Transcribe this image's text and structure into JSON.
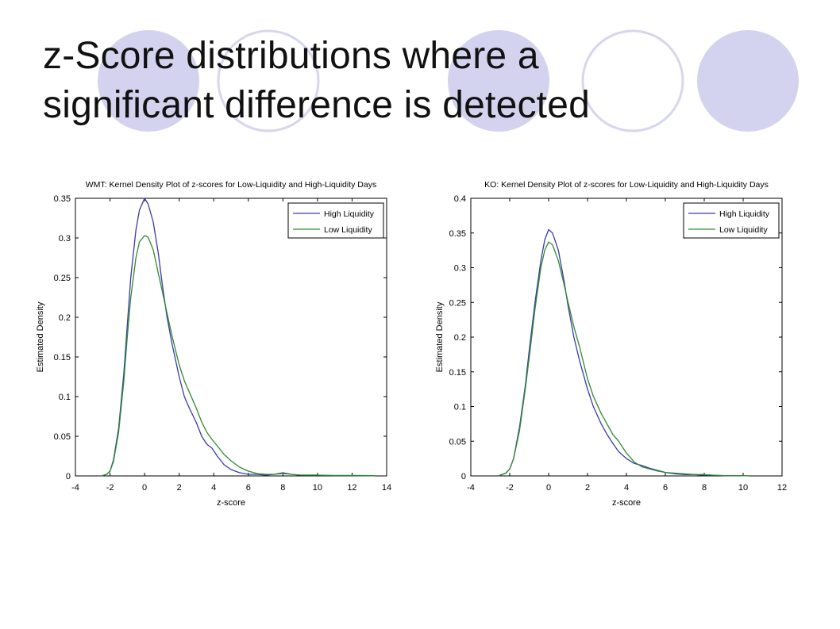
{
  "slide": {
    "title_line1": "z-Score distributions where a",
    "title_line2": "significant difference is detected"
  },
  "colors": {
    "circle_fill": "#d3d3ef",
    "circle_outline": "#d6d6ee",
    "high_liquidity": "#3a3aa8",
    "low_liquidity": "#2e8b2e"
  },
  "decor_circles": [
    {
      "kind": "filled"
    },
    {
      "kind": "outline"
    },
    {
      "kind": "filled"
    },
    {
      "kind": "outline"
    },
    {
      "kind": "filled"
    }
  ],
  "chart_data": [
    {
      "type": "line",
      "title": "WMT: Kernel Density Plot of z-scores for Low-Liquidity and High-Liquidity Days",
      "xlabel": "z-score",
      "ylabel": "Estimated Density",
      "xlim": [
        -4,
        14
      ],
      "ylim": [
        0,
        0.35
      ],
      "xticks": [
        -4,
        -2,
        0,
        2,
        4,
        6,
        8,
        10,
        12,
        14
      ],
      "yticks": [
        0,
        0.05,
        0.1,
        0.15,
        0.2,
        0.25,
        0.3,
        0.35
      ],
      "ytick_labels": [
        "0",
        "0.05",
        "0.1",
        "0.15",
        "0.2",
        "0.25",
        "0.3",
        "0.35"
      ],
      "grid": false,
      "legend": "top-right",
      "series": [
        {
          "name": "High Liquidity",
          "x": [
            -2.5,
            -2.2,
            -2.0,
            -1.8,
            -1.5,
            -1.2,
            -1.0,
            -0.8,
            -0.5,
            -0.3,
            0.0,
            0.2,
            0.5,
            0.8,
            1.0,
            1.3,
            1.6,
            2.0,
            2.3,
            2.6,
            3.0,
            3.3,
            3.6,
            3.9,
            4.2,
            4.6,
            5.0,
            5.5,
            6.0,
            6.5,
            7.0,
            7.5,
            8.0,
            8.5,
            9.0,
            10.0,
            11.0,
            12.0,
            13.3
          ],
          "y": [
            0.0,
            0.002,
            0.006,
            0.02,
            0.06,
            0.13,
            0.19,
            0.25,
            0.31,
            0.335,
            0.35,
            0.343,
            0.32,
            0.28,
            0.245,
            0.2,
            0.165,
            0.125,
            0.1,
            0.085,
            0.067,
            0.05,
            0.04,
            0.035,
            0.025,
            0.014,
            0.008,
            0.004,
            0.002,
            0.002,
            0.001,
            0.002,
            0.004,
            0.002,
            0.001,
            0.001,
            0.0005,
            0.0005,
            0.0003
          ]
        },
        {
          "name": "Low Liquidity",
          "x": [
            -2.5,
            -2.2,
            -2.0,
            -1.8,
            -1.5,
            -1.2,
            -1.0,
            -0.8,
            -0.5,
            -0.3,
            0.0,
            0.2,
            0.5,
            0.8,
            1.0,
            1.3,
            1.6,
            2.0,
            2.3,
            2.6,
            3.0,
            3.3,
            3.6,
            3.9,
            4.2,
            4.6,
            5.0,
            5.5,
            6.0,
            6.5,
            7.0,
            7.5,
            8.0,
            8.5,
            9.0,
            10.0,
            11.0,
            12.0,
            13.3
          ],
          "y": [
            0.0,
            0.002,
            0.006,
            0.018,
            0.055,
            0.12,
            0.175,
            0.225,
            0.275,
            0.295,
            0.303,
            0.301,
            0.285,
            0.255,
            0.235,
            0.205,
            0.175,
            0.14,
            0.12,
            0.105,
            0.085,
            0.068,
            0.055,
            0.046,
            0.038,
            0.027,
            0.019,
            0.011,
            0.006,
            0.003,
            0.002,
            0.002,
            0.003,
            0.002,
            0.001,
            0.001,
            0.0005,
            0.0005,
            0.0003
          ]
        }
      ]
    },
    {
      "type": "line",
      "title": "KO: Kernel Density Plot of z-scores for Low-Liquidity and High-Liquidity Days",
      "xlabel": "z-score",
      "ylabel": "Estimated Density",
      "xlim": [
        -4,
        12
      ],
      "ylim": [
        0,
        0.4
      ],
      "xticks": [
        -4,
        -2,
        0,
        2,
        4,
        6,
        8,
        10,
        12
      ],
      "yticks": [
        0,
        0.05,
        0.1,
        0.15,
        0.2,
        0.25,
        0.3,
        0.35,
        0.4
      ],
      "ytick_labels": [
        "0",
        "0.05",
        "0.1",
        "0.15",
        "0.2",
        "0.25",
        "0.3",
        "0.35",
        "0.4"
      ],
      "grid": false,
      "legend": "top-right",
      "series": [
        {
          "name": "High Liquidity",
          "x": [
            -2.6,
            -2.2,
            -2.0,
            -1.8,
            -1.5,
            -1.2,
            -1.0,
            -0.7,
            -0.4,
            -0.2,
            0.0,
            0.2,
            0.5,
            0.8,
            1.0,
            1.3,
            1.6,
            2.0,
            2.3,
            2.7,
            3.0,
            3.3,
            3.6,
            4.0,
            4.4,
            4.8,
            5.2,
            5.6,
            6.0,
            6.5,
            7.0,
            7.5,
            8.0,
            8.5,
            9.0,
            9.5,
            10.3
          ],
          "y": [
            0.0,
            0.004,
            0.01,
            0.025,
            0.07,
            0.13,
            0.18,
            0.25,
            0.31,
            0.34,
            0.355,
            0.35,
            0.325,
            0.28,
            0.245,
            0.2,
            0.165,
            0.125,
            0.1,
            0.075,
            0.06,
            0.047,
            0.035,
            0.025,
            0.018,
            0.015,
            0.011,
            0.008,
            0.005,
            0.003,
            0.002,
            0.002,
            0.001,
            0.001,
            0.0005,
            0.0003,
            0.0001
          ]
        },
        {
          "name": "Low Liquidity",
          "x": [
            -2.6,
            -2.2,
            -2.0,
            -1.8,
            -1.5,
            -1.2,
            -1.0,
            -0.7,
            -0.4,
            -0.2,
            0.0,
            0.2,
            0.5,
            0.8,
            1.0,
            1.3,
            1.6,
            2.0,
            2.3,
            2.7,
            3.0,
            3.3,
            3.6,
            4.0,
            4.4,
            4.8,
            5.2,
            5.6,
            6.0,
            6.5,
            7.0,
            7.5,
            8.0,
            8.5,
            9.0,
            9.5,
            10.3
          ],
          "y": [
            0.0,
            0.004,
            0.01,
            0.025,
            0.065,
            0.125,
            0.17,
            0.24,
            0.3,
            0.325,
            0.337,
            0.333,
            0.31,
            0.275,
            0.25,
            0.215,
            0.185,
            0.14,
            0.115,
            0.09,
            0.075,
            0.06,
            0.05,
            0.033,
            0.02,
            0.013,
            0.01,
            0.007,
            0.005,
            0.004,
            0.003,
            0.002,
            0.002,
            0.001,
            0.0005,
            0.0003,
            0.0001
          ]
        }
      ]
    }
  ]
}
